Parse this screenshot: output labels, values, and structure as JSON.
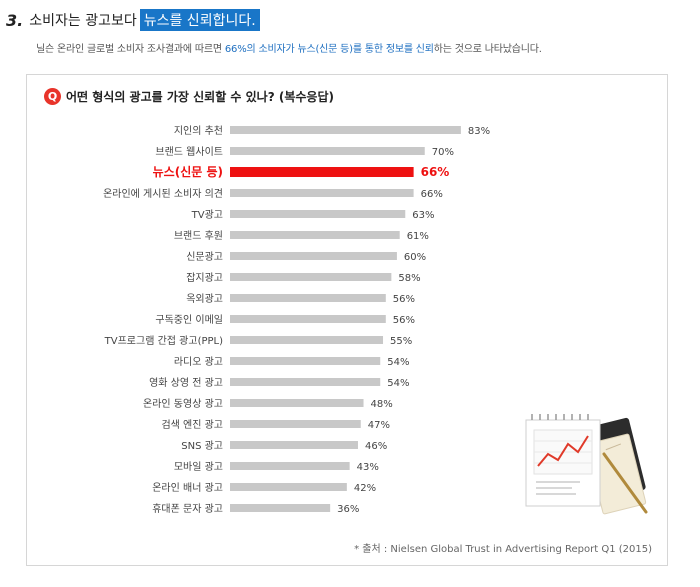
{
  "heading": {
    "number": "3.",
    "text": "소비자는 광고보다",
    "highlight": "뉴스를 신뢰합니다."
  },
  "subtitle": {
    "before": "닐슨 온라인 글로벌 소비자 조사결과에 따르면",
    "highlight": "66%의 소비자가 뉴스(신문 등)를 통한 정보를 신뢰",
    "after": "하는 것으로 나타났습니다."
  },
  "question": {
    "badge": "Q",
    "text": "어떤 형식의 광고를 가장 신뢰할 수 있나? (복수응답)"
  },
  "footnote": "* 출처 : Nielsen Global Trust in Advertising Report Q1 (2015)",
  "colors": {
    "bar": "#c8c8c8",
    "highlight_bar": "#ee1111",
    "highlight_text": "#ee1111",
    "heading_highlight_bg": "#1976c8",
    "subtitle_highlight": "#1e6fc0",
    "badge": "#e8342a"
  },
  "chart_data": {
    "type": "bar",
    "orientation": "horizontal",
    "categories": [
      "지인의 추천",
      "브랜드 웹사이트",
      "뉴스(신문 등)",
      "온라인에 게시된 소비자 의견",
      "TV광고",
      "브랜드 후원",
      "신문광고",
      "잡지광고",
      "옥외광고",
      "구독중인 이메일",
      "TV프로그램 간접 광고(PPL)",
      "라디오 광고",
      "영화 상영 전 광고",
      "온라인 동영상 광고",
      "검색 엔진 광고",
      "SNS 광고",
      "모바일 광고",
      "온라인 배너 광고",
      "휴대폰 문자 광고"
    ],
    "values": [
      83,
      70,
      66,
      66,
      63,
      61,
      60,
      58,
      56,
      56,
      55,
      54,
      54,
      48,
      47,
      46,
      43,
      42,
      36
    ],
    "value_labels": [
      "83%",
      "70%",
      "66%",
      "66%",
      "63%",
      "61%",
      "60%",
      "58%",
      "56%",
      "56%",
      "55%",
      "54%",
      "54%",
      "48%",
      "47%",
      "46%",
      "43%",
      "42%",
      "36%"
    ],
    "highlight_index": 2,
    "unit": "%",
    "xlim": [
      0,
      100
    ],
    "grid": false,
    "legend": "none"
  }
}
